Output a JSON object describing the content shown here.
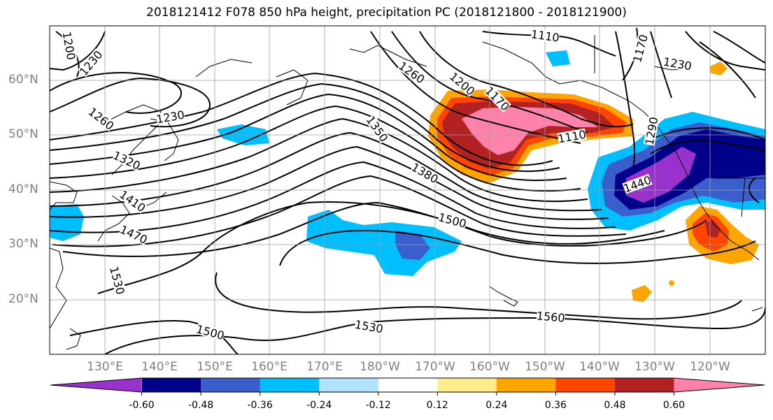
{
  "title": "2018121412 F078 850 hPa height, precipitation PC (2018121800 - 2018121900)",
  "map": {
    "lat_labels": [
      "60°N",
      "50°N",
      "40°N",
      "30°N",
      "20°N"
    ],
    "lon_labels": [
      "130°E",
      "140°E",
      "150°E",
      "160°E",
      "170°E",
      "180°W",
      "170°W",
      "160°W",
      "150°W",
      "140°W",
      "130°W",
      "120°W"
    ],
    "contour_labels": [
      "1200",
      "1230",
      "1260",
      "1230",
      "1260",
      "1320",
      "1410",
      "1470",
      "1530",
      "1500",
      "1530",
      "1560",
      "1500",
      "1380",
      "1350",
      "1260",
      "1200",
      "1170",
      "1110",
      "1110",
      "1290",
      "1170",
      "1230",
      "1440"
    ]
  },
  "colorbar": {
    "labels": [
      "-0.60",
      "-0.48",
      "-0.36",
      "-0.24",
      "-0.12",
      "0.12",
      "0.24",
      "0.36",
      "0.48",
      "0.60"
    ],
    "colors": [
      "#9932cc",
      "#00008b",
      "#3a5fcd",
      "#00bfff",
      "#b0e2ff",
      "#ffffff",
      "#ffec8b",
      "#ffa500",
      "#ff4500",
      "#b22222",
      "#ff82ab"
    ]
  }
}
